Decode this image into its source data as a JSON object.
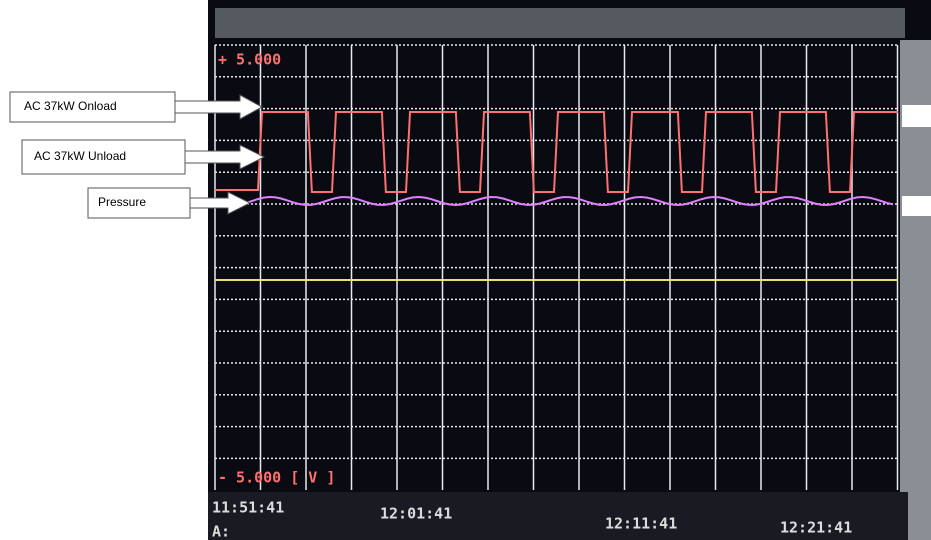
{
  "annotations": [
    {
      "label": "AC 37kW   Onload"
    },
    {
      "label": "AC 37kW   Unload"
    },
    {
      "label": "Pressure"
    }
  ],
  "screen": {
    "top_label": "+ 5.000",
    "bottom_label": "- 5.000 [ V   ]",
    "time_labels": [
      "11:51:41",
      "12:01:41",
      "12:11:41",
      "12:21:41"
    ],
    "channel": "A:"
  }
}
